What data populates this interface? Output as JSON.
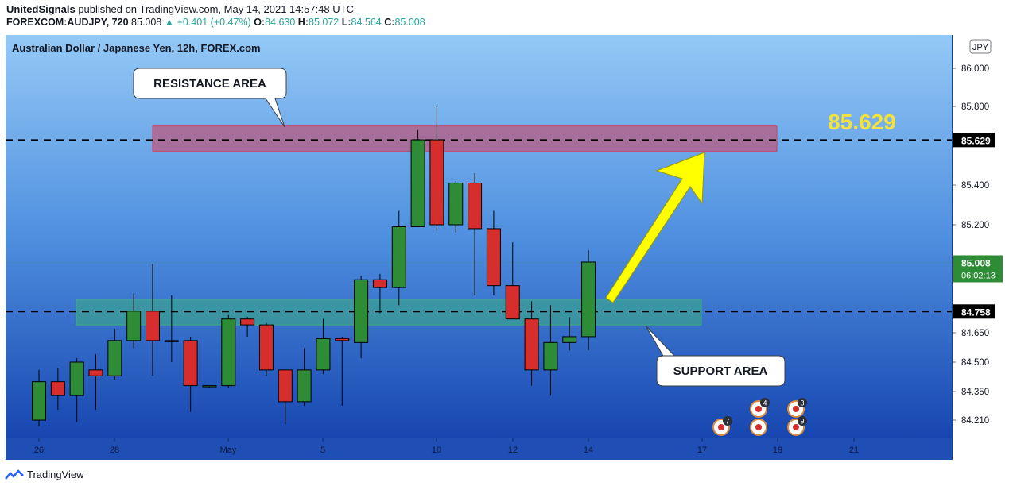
{
  "header": {
    "author": "UnitedSignals",
    "published_prefix": "published on",
    "site": "TradingView.com,",
    "date": "May 14, 2021 14:57:48 UTC",
    "symbol": "FOREXCOM:AUDJPY,",
    "interval": "720",
    "last": "85.008",
    "change": "▲ +0.401 (+0.47%)",
    "o_label": "O:",
    "o_value": "84.630",
    "h_label": "H:",
    "h_value": "85.072",
    "l_label": "L:",
    "l_value": "84.564",
    "c_label": "C:",
    "c_value": "85.008"
  },
  "chart_data": {
    "type": "candlestick",
    "title": "Australian Dollar / Japanese Yen, 12h, FOREX.com",
    "currency_label": "JPY",
    "colors": {
      "up": "#2e8b36",
      "down": "#d62d2d",
      "background_top": "#92c8f5",
      "background_bottom": "#1747b0"
    },
    "y_ticks": [
      "86.000",
      "85.800",
      "85.400",
      "85.200",
      "84.650",
      "84.500",
      "84.350",
      "84.210"
    ],
    "y_tick_values": [
      86.0,
      85.8,
      85.4,
      85.2,
      84.65,
      84.5,
      84.35,
      84.21
    ],
    "x_ticks": [
      "26",
      "28",
      "May",
      "5",
      "10",
      "12",
      "14",
      "17",
      "19",
      "21"
    ],
    "price_labels": [
      {
        "value": "85.629",
        "level": 85.629
      },
      {
        "value": "85.008",
        "level": 85.008,
        "countdown": "06:02:13"
      },
      {
        "value": "84.758",
        "level": 84.758
      }
    ],
    "horizontal_lines": [
      85.629,
      84.758
    ],
    "zones": [
      {
        "name": "resistance",
        "low": 85.57,
        "high": 85.7
      },
      {
        "name": "support",
        "low": 84.69,
        "high": 84.82
      }
    ],
    "annotations": {
      "resistance_label": "RESISTANCE AREA",
      "support_label": "SUPPORT AREA",
      "target_label": "85.629"
    },
    "candles": [
      {
        "o": 84.21,
        "h": 84.46,
        "l": 84.18,
        "c": 84.4
      },
      {
        "o": 84.4,
        "h": 84.47,
        "l": 84.26,
        "c": 84.33
      },
      {
        "o": 84.33,
        "h": 84.52,
        "l": 84.2,
        "c": 84.5
      },
      {
        "o": 84.46,
        "h": 84.54,
        "l": 84.26,
        "c": 84.43
      },
      {
        "o": 84.43,
        "h": 84.67,
        "l": 84.41,
        "c": 84.61
      },
      {
        "o": 84.61,
        "h": 84.85,
        "l": 84.57,
        "c": 84.76
      },
      {
        "o": 84.76,
        "h": 85.0,
        "l": 84.43,
        "c": 84.61
      },
      {
        "o": 84.61,
        "h": 84.84,
        "l": 84.5,
        "c": 84.61
      },
      {
        "o": 84.61,
        "h": 84.63,
        "l": 84.25,
        "c": 84.38
      },
      {
        "o": 84.38,
        "h": 84.38,
        "l": 84.37,
        "c": 84.38
      },
      {
        "o": 84.38,
        "h": 84.74,
        "l": 84.37,
        "c": 84.72
      },
      {
        "o": 84.72,
        "h": 84.73,
        "l": 84.63,
        "c": 84.69
      },
      {
        "o": 84.69,
        "h": 84.7,
        "l": 84.43,
        "c": 84.46
      },
      {
        "o": 84.46,
        "h": 84.46,
        "l": 84.19,
        "c": 84.3
      },
      {
        "o": 84.3,
        "h": 84.57,
        "l": 84.28,
        "c": 84.46
      },
      {
        "o": 84.46,
        "h": 84.72,
        "l": 84.44,
        "c": 84.62
      },
      {
        "o": 84.62,
        "h": 84.63,
        "l": 84.28,
        "c": 84.61
      },
      {
        "o": 84.6,
        "h": 84.94,
        "l": 84.52,
        "c": 84.92
      },
      {
        "o": 84.92,
        "h": 84.95,
        "l": 84.75,
        "c": 84.88
      },
      {
        "o": 84.88,
        "h": 85.27,
        "l": 84.79,
        "c": 85.19
      },
      {
        "o": 85.19,
        "h": 85.68,
        "l": 85.19,
        "c": 85.63
      },
      {
        "o": 85.63,
        "h": 85.8,
        "l": 85.17,
        "c": 85.2
      },
      {
        "o": 85.2,
        "h": 85.42,
        "l": 85.16,
        "c": 85.41
      },
      {
        "o": 85.41,
        "h": 85.46,
        "l": 84.84,
        "c": 85.18
      },
      {
        "o": 85.18,
        "h": 85.27,
        "l": 84.84,
        "c": 84.89
      },
      {
        "o": 84.89,
        "h": 85.11,
        "l": 84.72,
        "c": 84.72
      },
      {
        "o": 84.72,
        "h": 84.81,
        "l": 84.38,
        "c": 84.46
      },
      {
        "o": 84.46,
        "h": 84.79,
        "l": 84.33,
        "c": 84.6
      },
      {
        "o": 84.6,
        "h": 84.73,
        "l": 84.56,
        "c": 84.63
      },
      {
        "o": 84.63,
        "h": 85.07,
        "l": 84.56,
        "c": 85.01
      }
    ],
    "event_badges": [
      {
        "count": "7"
      },
      {
        "count": "4"
      },
      {
        "count": "9"
      },
      {
        "count": "3"
      }
    ]
  },
  "footer": {
    "brand": "TradingView"
  }
}
